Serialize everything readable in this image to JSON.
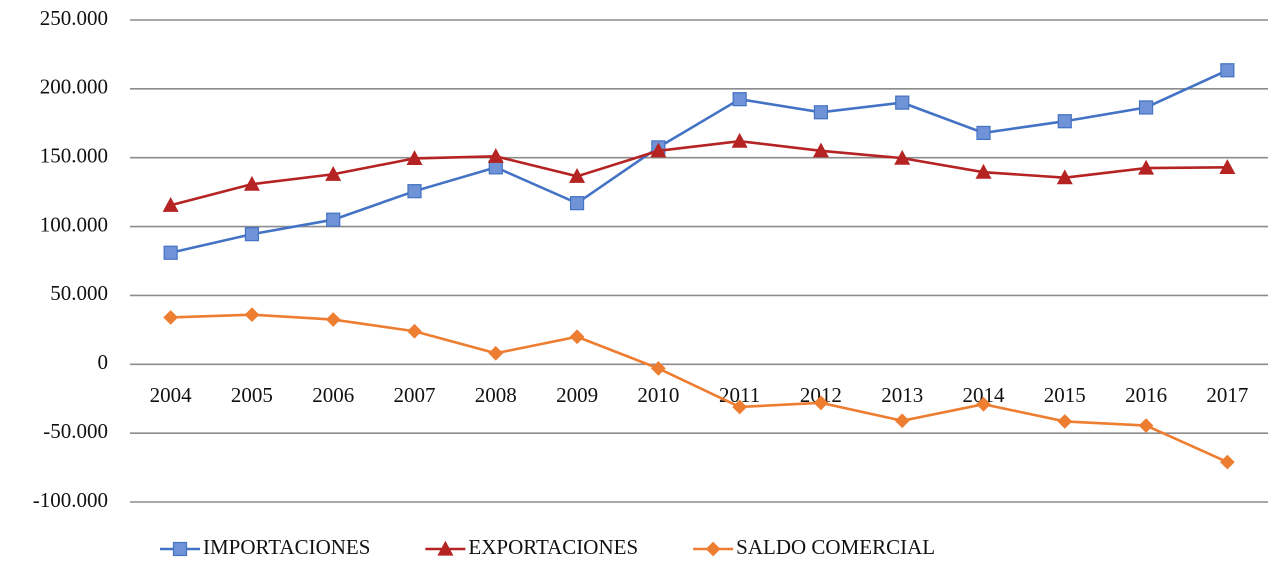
{
  "chart_data": {
    "type": "line",
    "categories": [
      "2004",
      "2005",
      "2006",
      "2007",
      "2008",
      "2009",
      "2010",
      "2011",
      "2012",
      "2013",
      "2014",
      "2015",
      "2016",
      "2017"
    ],
    "series": [
      {
        "name": "IMPORTACIONES",
        "color": "#4472c4",
        "marker": "square",
        "values": [
          81000,
          94500,
          105000,
          125700,
          143000,
          117000,
          157500,
          192500,
          183000,
          190000,
          168000,
          176500,
          186500,
          213500
        ]
      },
      {
        "name": "EXPORTACIONES",
        "color": "#b52323",
        "marker": "triangle",
        "values": [
          115500,
          130800,
          138000,
          149500,
          151000,
          136500,
          155000,
          162000,
          155000,
          149700,
          139500,
          135500,
          142500,
          143000
        ]
      },
      {
        "name": "SALDO COMERCIAL",
        "color": "#ed7d31",
        "marker": "diamond",
        "values": [
          34000,
          36000,
          32500,
          24000,
          8000,
          20000,
          -3000,
          -31000,
          -28000,
          -41000,
          -29000,
          -41500,
          -44500,
          -71000
        ]
      }
    ],
    "ylim": [
      -100000,
      250000
    ],
    "yticks": [
      {
        "value": -100000,
        "label": "-100.000"
      },
      {
        "value": -50000,
        "label": "-50.000"
      },
      0,
      {
        "value": 50000,
        "label": "50.000"
      },
      {
        "value": 100000,
        "label": "100.000"
      },
      {
        "value": 150000,
        "label": "150.000"
      },
      {
        "value": 200000,
        "label": "200.000"
      },
      {
        "value": 250000,
        "label": "250.000"
      }
    ],
    "grid": true
  }
}
